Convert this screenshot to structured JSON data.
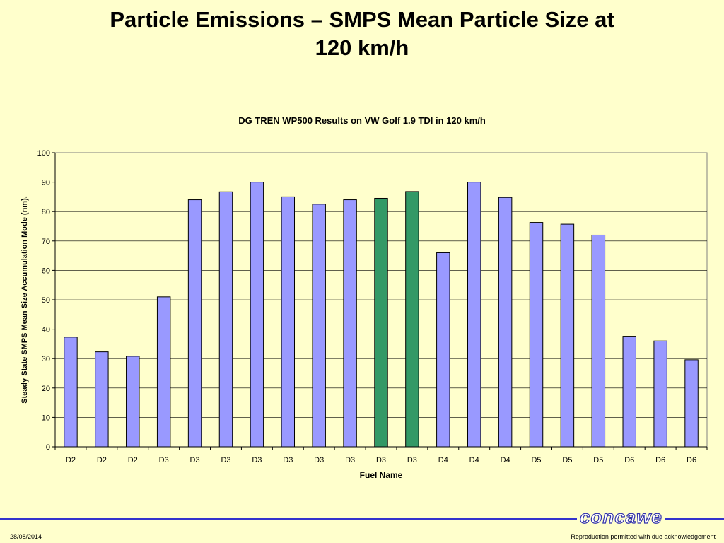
{
  "slide": {
    "title_line1": "Particle Emissions – SMPS Mean Particle Size at",
    "title_line2": "120 km/h"
  },
  "footer": {
    "date": "28/08/2014",
    "note": "Reproduction permitted with due acknowledgement",
    "logo_text": "concawe"
  },
  "chart_data": {
    "type": "bar",
    "title": "DG TREN WP500 Results on VW Golf 1.9 TDI in 120 km/h",
    "xlabel": "Fuel Name",
    "ylabel": "Steady State SMPS Mean Size Accumulation Mode (nm).",
    "ylim": [
      0,
      100
    ],
    "yticks": [
      0,
      10,
      20,
      30,
      40,
      50,
      60,
      70,
      80,
      90,
      100
    ],
    "grid": true,
    "categories": [
      "D2",
      "D2",
      "D2",
      "D3",
      "D3",
      "D3",
      "D3",
      "D3",
      "D3",
      "D3",
      "D3",
      "D3",
      "D4",
      "D4",
      "D4",
      "D5",
      "D5",
      "D5",
      "D6",
      "D6",
      "D6"
    ],
    "values": [
      37.3,
      32.3,
      30.8,
      51.0,
      84.0,
      86.7,
      90.0,
      85.0,
      82.5,
      84.0,
      84.5,
      86.8,
      66.0,
      90.0,
      84.8,
      76.3,
      75.7,
      72.0,
      37.6,
      36.0,
      29.6
    ],
    "colors": {
      "default": "#9999ff",
      "highlight": "#339966",
      "highlighted_indices": [
        10,
        11
      ]
    }
  }
}
